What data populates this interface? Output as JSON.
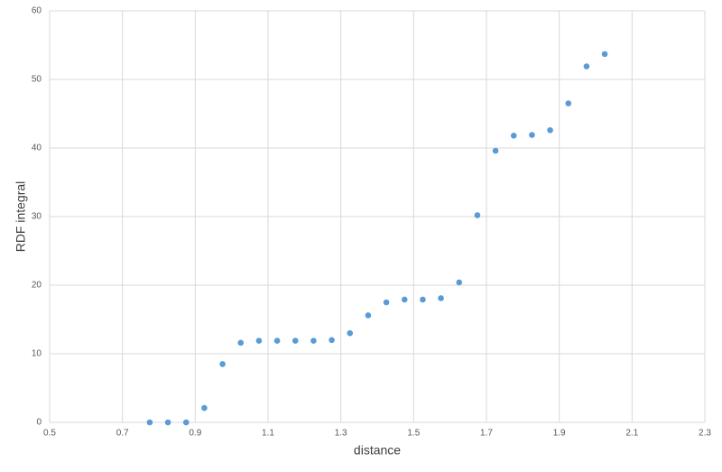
{
  "chart_data": {
    "type": "scatter",
    "x_label": "distance",
    "y_label": "RDF integral",
    "x": [
      0.775,
      0.825,
      0.875,
      0.925,
      0.975,
      1.025,
      1.075,
      1.125,
      1.175,
      1.225,
      1.275,
      1.325,
      1.375,
      1.425,
      1.475,
      1.525,
      1.575,
      1.625,
      1.675,
      1.725,
      1.775,
      1.825,
      1.875,
      1.925,
      1.975,
      2.025
    ],
    "values": [
      0,
      0,
      0,
      2.1,
      8.5,
      11.6,
      11.9,
      11.9,
      11.9,
      11.9,
      12.0,
      13.0,
      15.6,
      17.5,
      17.9,
      17.9,
      18.1,
      20.4,
      30.2,
      39.6,
      41.8,
      41.9,
      42.6,
      46.5,
      51.9,
      53.7
    ],
    "color": "#5b9bd5",
    "xlim": [
      0.5,
      2.3
    ],
    "xticks": [
      0.5,
      0.7,
      0.9,
      1.1,
      1.3,
      1.5,
      1.7,
      1.9,
      2.1,
      2.3
    ],
    "ylim": [
      0,
      60
    ],
    "yticks": [
      0,
      10,
      20,
      30,
      40,
      50,
      60
    ],
    "grid": true
  }
}
